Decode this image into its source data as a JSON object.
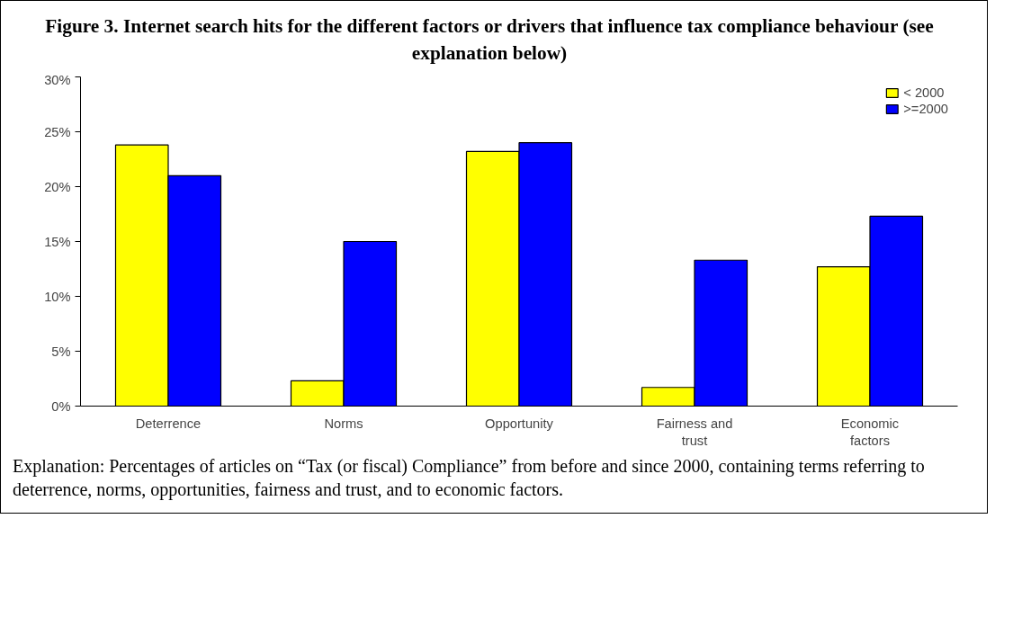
{
  "chart_data": {
    "type": "bar",
    "title": "Figure 3. Internet search hits for the different factors or drivers that influence tax compliance behaviour (see explanation below)",
    "categories": [
      "Deterrence",
      "Norms",
      "Opportunity",
      "Fairness and\ntrust",
      "Economic\nfactors"
    ],
    "series": [
      {
        "name": "< 2000",
        "color": "#ffff00",
        "values": [
          23.8,
          2.3,
          23.2,
          1.7,
          12.7
        ]
      },
      {
        "name": ">=2000",
        "color": "#0000ff",
        "values": [
          21.0,
          15.0,
          24.0,
          13.3,
          17.3
        ]
      }
    ],
    "ylim": [
      0,
      30
    ],
    "yticks": [
      {
        "value": 0,
        "label": "0%"
      },
      {
        "value": 5,
        "label": "5%"
      },
      {
        "value": 10,
        "label": "10%"
      },
      {
        "value": 15,
        "label": "15%"
      },
      {
        "value": 20,
        "label": "20%"
      },
      {
        "value": 25,
        "label": "25%"
      },
      {
        "value": 30,
        "label": "30%"
      }
    ],
    "grid": false,
    "legend": "top right",
    "annotations": [
      "Explanation: Percentages of articles on “Tax (or fiscal) Compliance” from before and since 2000, containing terms referring to deterrence, norms, opportunities, fairness and trust, and to economic factors."
    ]
  }
}
